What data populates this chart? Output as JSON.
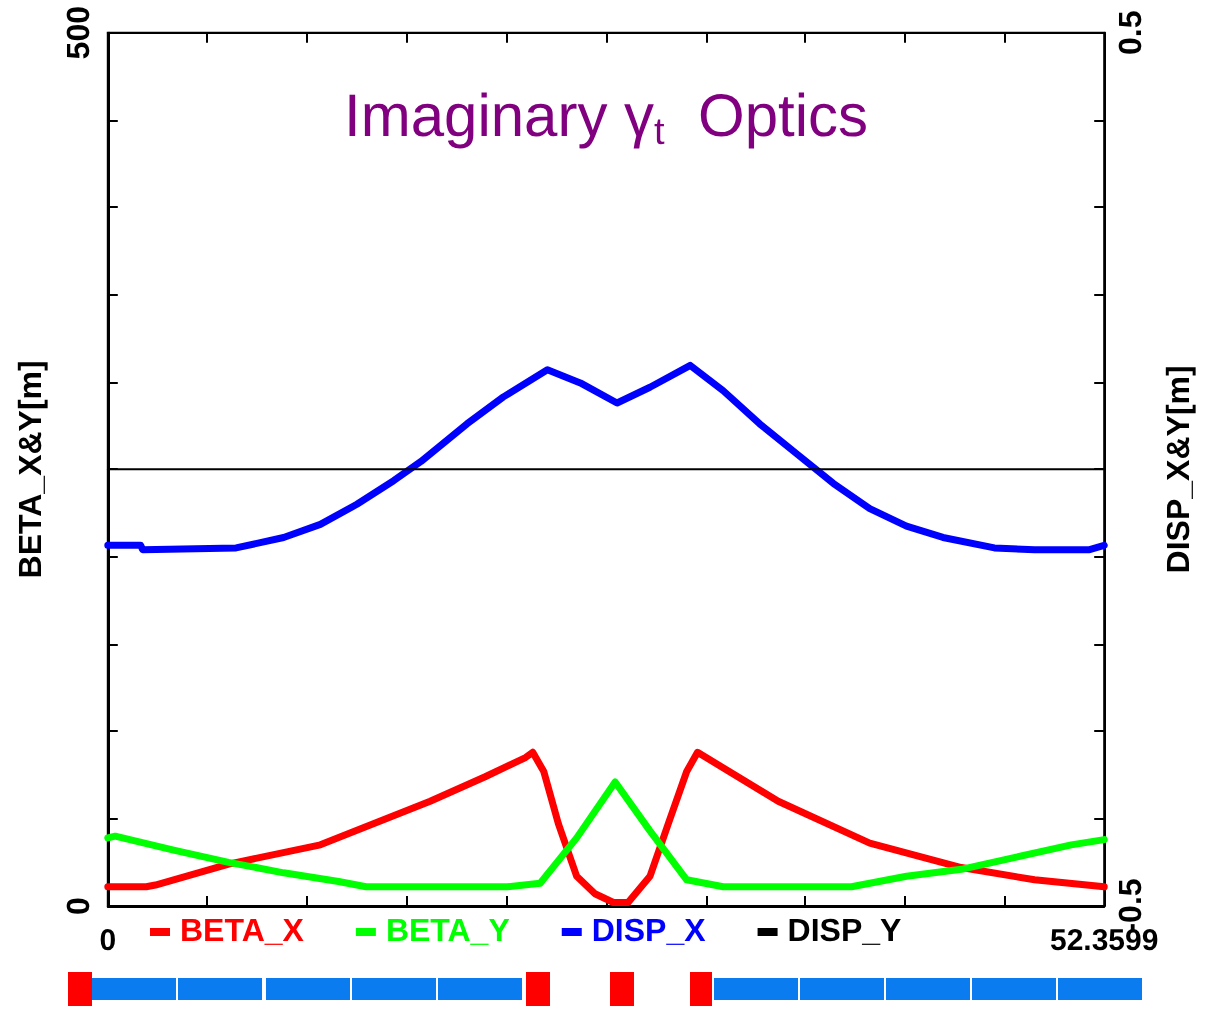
{
  "chart_data": {
    "type": "line",
    "title": "Imaginary γ$_{t}$  Optics",
    "xlabel": null,
    "ylabel": "BETA_X&Y[m]",
    "y2label": "DISP_X&Y[m]",
    "series": [
      {
        "name": "BETA_X",
        "color": "#ff0000",
        "x": [
          0,
          2.02,
          2.5,
          6.35,
          11.17,
          16.94,
          19.83,
          21.95,
          22.33,
          22.91,
          23.68,
          24.64,
          25.6,
          26.57,
          27.34,
          28.49,
          29.45,
          30.42,
          30.99,
          35.23,
          40.04,
          44.85,
          48.7,
          52.3599
        ],
        "values": [
          11,
          11,
          12,
          24,
          35,
          60,
          74,
          85,
          88,
          77,
          47,
          17,
          7,
          2,
          2,
          17,
          47,
          77,
          88,
          60,
          36,
          22,
          15,
          11
        ]
      },
      {
        "name": "BETA_Y",
        "color": "#00ff00",
        "x": [
          0,
          0.39,
          3.46,
          6.35,
          9.24,
          12.13,
          13.57,
          20.98,
          22.72,
          24.64,
          26.66,
          28.49,
          30.42,
          32.34,
          39.08,
          41.97,
          44.85,
          47.74,
          50.63,
          52.3599
        ],
        "values": [
          39,
          40,
          32,
          25,
          19,
          14,
          11,
          11,
          13,
          39,
          71,
          43,
          15,
          11,
          11,
          17,
          21,
          28,
          35,
          38
        ]
      },
      {
        "name": "DISP_X",
        "color": "#0000ff",
        "axis": "y2",
        "x": [
          0,
          1.73,
          1.83,
          6.74,
          9.24,
          11.17,
          13.09,
          15.02,
          16.46,
          18.87,
          20.79,
          23.1,
          24.83,
          26.76,
          28.49,
          30.61,
          32.34,
          34.26,
          36.19,
          38.12,
          40.04,
          41.97,
          43.89,
          46.59,
          48.7,
          51.59,
          52.3599
        ],
        "values": [
          -0.087,
          -0.087,
          -0.092,
          -0.09,
          -0.078,
          -0.063,
          -0.04,
          -0.013,
          0.009,
          0.052,
          0.083,
          0.114,
          0.099,
          0.076,
          0.094,
          0.119,
          0.09,
          0.052,
          0.018,
          -0.016,
          -0.045,
          -0.065,
          -0.078,
          -0.09,
          -0.092,
          -0.092,
          -0.087
        ]
      },
      {
        "name": "DISP_Y",
        "color": "#000000",
        "axis": "y2",
        "x": [
          0,
          52.3599
        ],
        "values": [
          0,
          0
        ]
      }
    ],
    "xlim": [
      0,
      52.3599
    ],
    "xticks": [
      0,
      {
        "value": 5.236,
        "label": null
      },
      {
        "value": 10.472,
        "label": null
      },
      {
        "value": 15.708,
        "label": null
      },
      {
        "value": 20.944,
        "label": null
      },
      {
        "value": 26.18,
        "label": null
      },
      {
        "value": 31.416,
        "label": null
      },
      {
        "value": 36.652,
        "label": null
      },
      {
        "value": 41.888,
        "label": null
      },
      {
        "value": 47.124,
        "label": null
      },
      52.3599
    ],
    "ylim": [
      0,
      500
    ],
    "yticks": [
      0,
      {
        "value": 50,
        "label": null
      },
      {
        "value": 100,
        "label": null
      },
      {
        "value": 150,
        "label": null
      },
      {
        "value": 200,
        "label": null
      },
      {
        "value": 250,
        "label": null
      },
      {
        "value": 300,
        "label": null
      },
      {
        "value": 350,
        "label": null
      },
      {
        "value": 400,
        "label": null
      },
      {
        "value": 450,
        "label": null
      },
      500
    ],
    "y2lim": [
      -0.5,
      0.5
    ],
    "y2ticks": [
      -0.5,
      {
        "value": -0.4,
        "label": null
      },
      {
        "value": -0.3,
        "label": null
      },
      {
        "value": -0.2,
        "label": null
      },
      {
        "value": -0.1,
        "label": null
      },
      {
        "value": 0,
        "label": null
      },
      {
        "value": 0.1,
        "label": null
      },
      {
        "value": 0.2,
        "label": null
      },
      {
        "value": 0.3,
        "label": null
      },
      {
        "value": 0.4,
        "label": null
      },
      0.5
    ],
    "grid": false,
    "legend": "bottom"
  }
}
